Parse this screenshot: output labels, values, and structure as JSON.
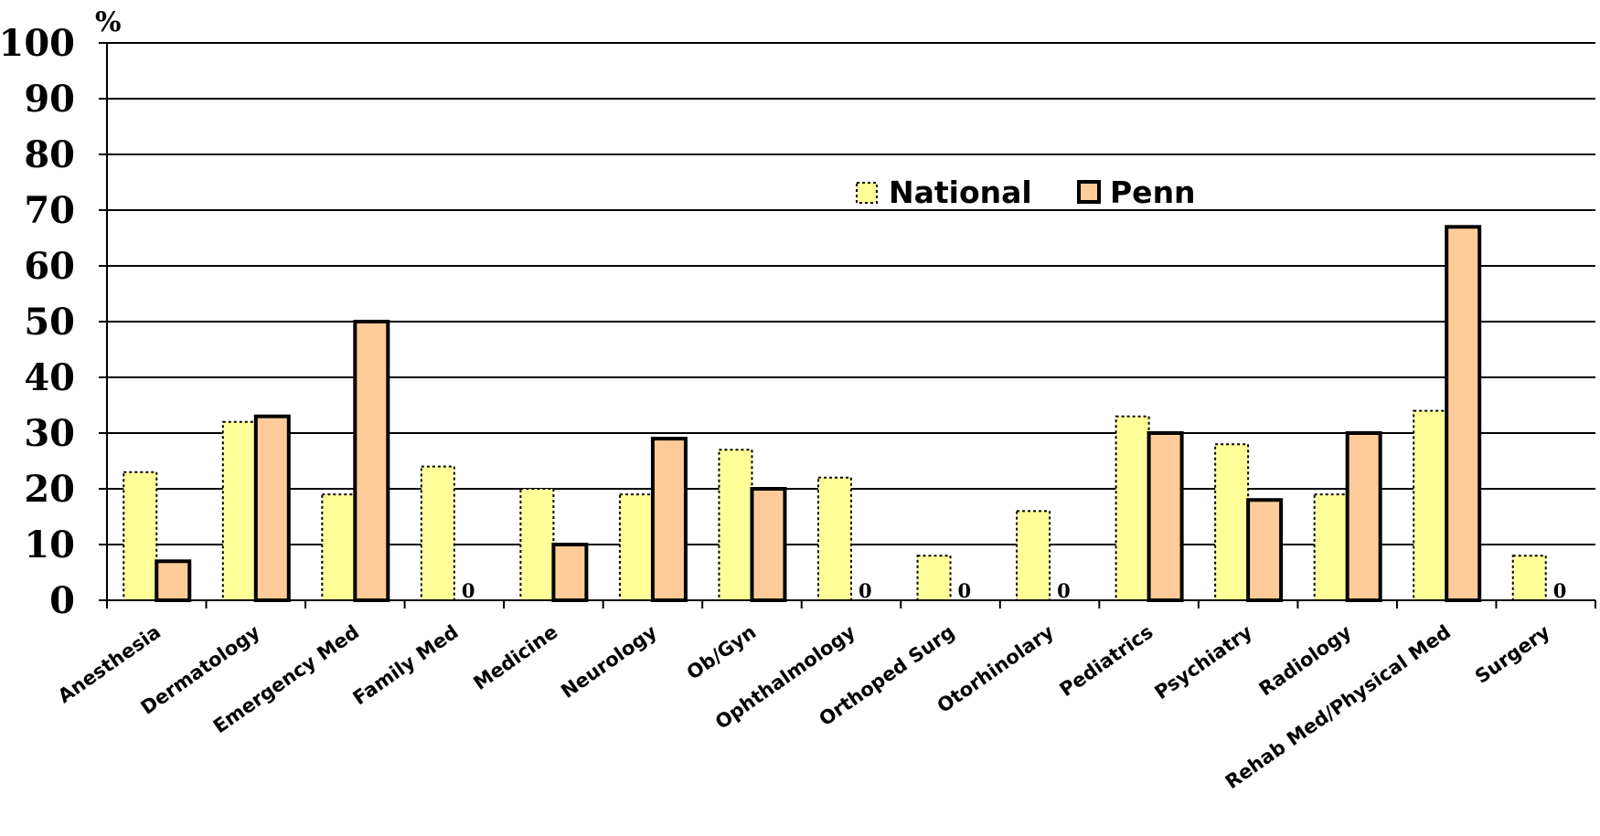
{
  "chart_data": {
    "type": "bar",
    "y_unit": "%",
    "ylim": [
      0,
      100
    ],
    "y_ticks": [
      0,
      10,
      20,
      30,
      40,
      50,
      60,
      70,
      80,
      90,
      100
    ],
    "grid": true,
    "legend_position": "top-center",
    "categories": [
      "Anesthesia",
      "Dermatology",
      "Emergency Med",
      "Family Med",
      "Medicine",
      "Neurology",
      "Ob/Gyn",
      "Ophthalmology",
      "Orthoped Surg",
      "Otorhinolary",
      "Pediatrics",
      "Psychiatry",
      "Radiology",
      "Rehab Med/Physical Med",
      "Surgery"
    ],
    "series": [
      {
        "name": "National",
        "values": [
          23,
          32,
          19,
          24,
          20,
          19,
          27,
          22,
          8,
          16,
          33,
          28,
          19,
          34,
          8
        ]
      },
      {
        "name": "Penn",
        "values": [
          7,
          33,
          50,
          0,
          10,
          29,
          20,
          0,
          0,
          0,
          30,
          18,
          30,
          67,
          0
        ]
      }
    ],
    "zero_value_label": "0"
  },
  "colors": {
    "national_fill": "#ffff99",
    "national_stroke": "#000000",
    "penn_fill": "#ffcc99",
    "penn_stroke": "#000000",
    "grid": "#000000"
  }
}
